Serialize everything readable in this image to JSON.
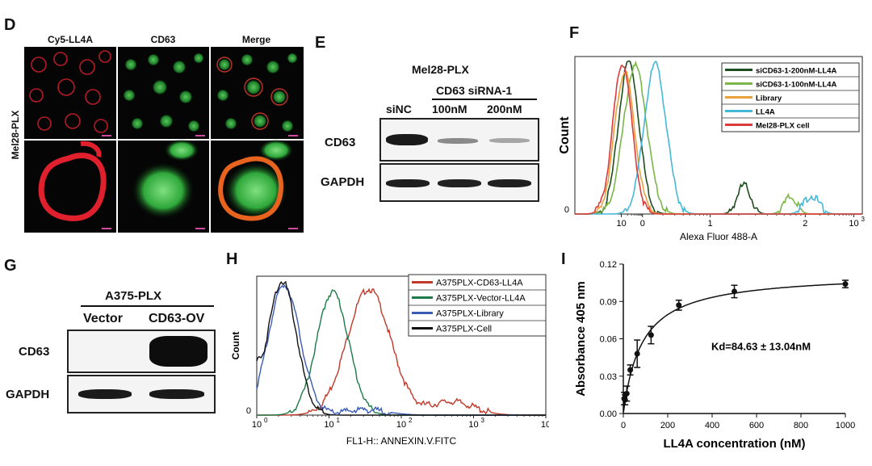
{
  "panel_D": {
    "letter": "D",
    "col_labels": [
      "Cy5-LL4A",
      "CD63",
      "Merge"
    ],
    "row_label": "Mel28-PLX"
  },
  "panel_E": {
    "letter": "E",
    "cell_line": "Mel28-PLX",
    "group_label": "CD63 siRNA-1",
    "lanes": [
      "siNC",
      "100nM",
      "200nM"
    ],
    "rows": [
      "CD63",
      "GAPDH"
    ]
  },
  "panel_G": {
    "letter": "G",
    "cell_line": "A375-PLX",
    "lanes": [
      "Vector",
      "CD63-OV"
    ],
    "rows": [
      "CD63",
      "GAPDH"
    ]
  },
  "chart_data": [
    {
      "panel": "F",
      "type": "line",
      "ylabel": "Count",
      "xlabel": "Alexa Fluor 488-A",
      "x_ticks": [
        "10",
        "0",
        "1",
        "2",
        "10"
      ],
      "x_tick_sup": [
        "",
        "",
        "",
        "",
        "3"
      ],
      "y_ticks": [
        "0"
      ],
      "legend_position": "top-right",
      "series": [
        {
          "name": "siCD63-1-200nM-LL4A",
          "color": "#1e4d1e",
          "peaks": [
            [
              1.15,
              1.0,
              0.48
            ],
            [
              6.6,
              0.19,
              0.32
            ]
          ]
        },
        {
          "name": "siCD63-1-100nM-LL4A",
          "color": "#7ab648",
          "peaks": [
            [
              1.45,
              0.97,
              0.55
            ],
            [
              8.8,
              0.11,
              0.3
            ]
          ]
        },
        {
          "name": "Library",
          "color": "#e9a13b",
          "peaks": [
            [
              0.95,
              0.93,
              0.47
            ]
          ]
        },
        {
          "name": "LL4A",
          "color": "#45b8d8",
          "peaks": [
            [
              2.4,
              0.98,
              0.52
            ],
            [
              9.8,
              0.12,
              0.35
            ]
          ]
        },
        {
          "name": "Mel28-PLX cell",
          "color": "#dd3b3b",
          "peaks": [
            [
              0.85,
              0.99,
              0.45
            ]
          ]
        }
      ]
    },
    {
      "panel": "H",
      "type": "line",
      "ylabel": "Count",
      "xlabel": "FL1-H:: ANNEXIN.V.FITC",
      "x_ticks": [
        "10",
        "10",
        "10",
        "10",
        "10"
      ],
      "x_tick_sup": [
        "0",
        "1",
        "2",
        "3",
        "4"
      ],
      "y_ticks": [
        "0"
      ],
      "legend_position": "top-right",
      "series": [
        {
          "name": "A375PLX-CD63-LL4A",
          "color": "#c0392b",
          "peaks": [
            [
              1.55,
              0.94,
              0.3
            ],
            [
              2.7,
              0.1,
              0.3
            ]
          ]
        },
        {
          "name": "A375PLX-Vector-LL4A",
          "color": "#1e7a46",
          "peaks": [
            [
              1.05,
              0.92,
              0.22
            ]
          ]
        },
        {
          "name": "A375PLX-Library",
          "color": "#3b5bb5",
          "peaks": [
            [
              0.38,
              0.97,
              0.22
            ],
            [
              1.5,
              0.04,
              0.3
            ]
          ]
        },
        {
          "name": "A375PLX-Cell",
          "color": "#111111",
          "peaks": [
            [
              0.35,
              1.0,
              0.2
            ],
            [
              0.0,
              0.18,
              0.05
            ]
          ]
        }
      ]
    },
    {
      "panel": "I",
      "type": "scatter",
      "xlabel": "LL4A concentration (nM)",
      "ylabel": "Absorbance 405 nm",
      "xlim": [
        0,
        1000
      ],
      "ylim": [
        0,
        0.12
      ],
      "x_ticks": [
        "0",
        "200",
        "400",
        "600",
        "800",
        "1000"
      ],
      "y_ticks": [
        "0.00",
        "0.03",
        "0.06",
        "0.09",
        "0.12"
      ],
      "annotation": "Kd=84.63 ± 13.04nM",
      "kd": 84.63,
      "bmax": 0.113,
      "points": [
        {
          "x": 3.9,
          "y": 0.012,
          "err": 0.005
        },
        {
          "x": 7.8,
          "y": 0.011,
          "err": 0.004
        },
        {
          "x": 15.6,
          "y": 0.016,
          "err": 0.006
        },
        {
          "x": 31.25,
          "y": 0.035,
          "err": 0.004
        },
        {
          "x": 62.5,
          "y": 0.048,
          "err": 0.011
        },
        {
          "x": 125,
          "y": 0.063,
          "err": 0.007
        },
        {
          "x": 250,
          "y": 0.087,
          "err": 0.004
        },
        {
          "x": 500,
          "y": 0.098,
          "err": 0.005
        },
        {
          "x": 1000,
          "y": 0.104,
          "err": 0.003
        }
      ]
    }
  ]
}
